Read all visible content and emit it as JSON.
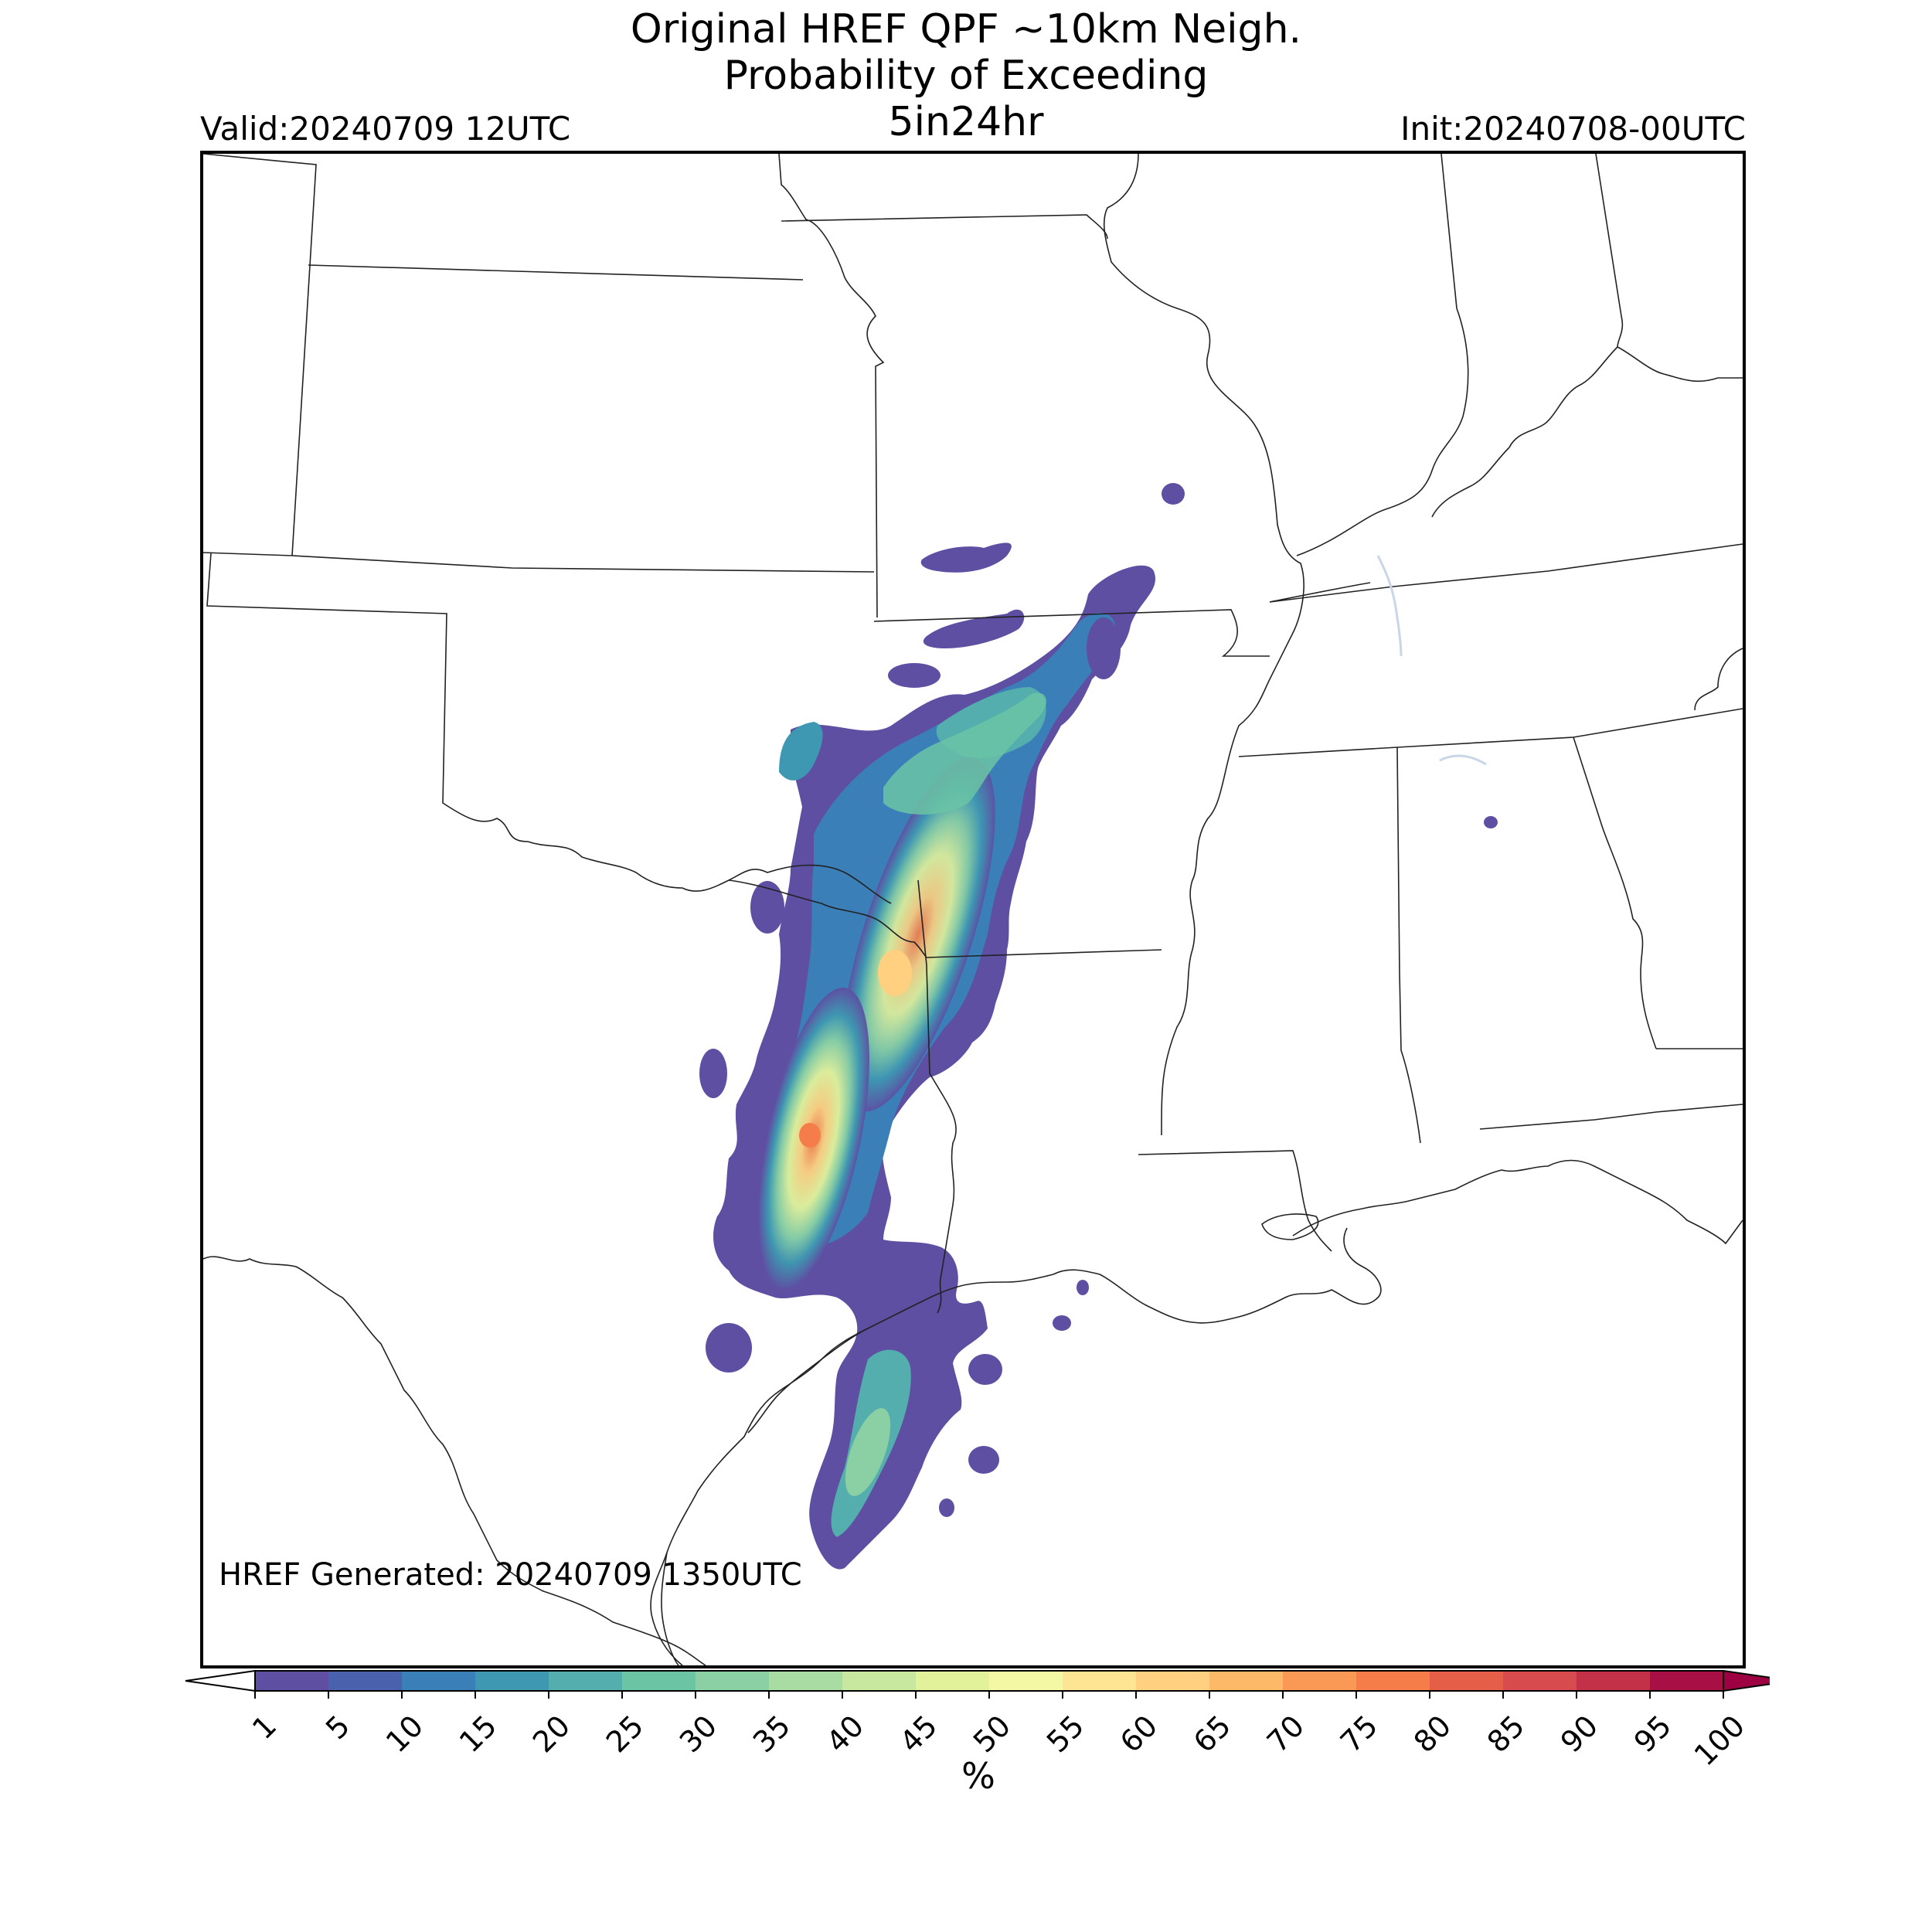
{
  "header": {
    "title_lines": [
      "Original HREF QPF ~10km Neigh.",
      "Probability of Exceeding",
      "5in24hr"
    ],
    "valid": "Valid:20240709 12UTC",
    "init": "Init:20240708-00UTC"
  },
  "map": {
    "generated_text": "HREF Generated: 20240709 1350UTC",
    "field": "probability of exceeding 5 in / 24 hr",
    "region": "south-central United States (Texas, Oklahoma, Louisiana, Arkansas, Mississippi, Alabama, Missouri, Kansas)",
    "max_probability_approx": 70
  },
  "colorbar": {
    "ticks": [
      "1",
      "5",
      "10",
      "15",
      "20",
      "25",
      "30",
      "35",
      "40",
      "45",
      "50",
      "55",
      "60",
      "65",
      "70",
      "75",
      "80",
      "85",
      "90",
      "95",
      "100"
    ],
    "unit": "%",
    "colors": [
      "#5e4fa2",
      "#4a62ad",
      "#3a7fb8",
      "#3e98b1",
      "#54aead",
      "#6bc4a4",
      "#8ad0a4",
      "#a9dca2",
      "#c8e89f",
      "#e2f29a",
      "#f4f8a4",
      "#fee593",
      "#fed07f",
      "#fdb868",
      "#fa9856",
      "#f47d4a",
      "#e55e48",
      "#d74a4d",
      "#c33149",
      "#a80f45",
      "#9e0142"
    ]
  }
}
